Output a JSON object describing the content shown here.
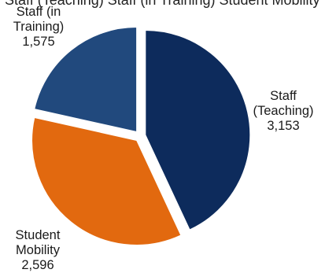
{
  "header_clipped_text": "Staff (Teaching) Staff (in Training) Student Mobility",
  "chart_data": {
    "type": "pie",
    "title": "",
    "slices": [
      {
        "name_lines": [
          "Staff",
          "(Teaching)"
        ],
        "value": 3153,
        "value_label": "3,153",
        "color": "#0d2b5c"
      },
      {
        "name_lines": [
          "Student",
          "Mobility"
        ],
        "value": 2596,
        "value_label": "2,596",
        "color": "#e2690f"
      },
      {
        "name_lines": [
          "Staff (in",
          "Training)"
        ],
        "value": 1575,
        "value_label": "1,575",
        "color": "#21497d"
      }
    ]
  }
}
